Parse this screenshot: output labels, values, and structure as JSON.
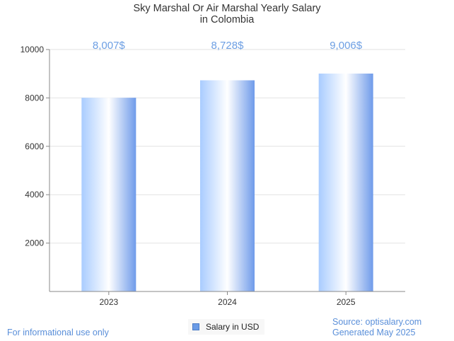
{
  "chart_data": {
    "type": "bar",
    "title_lines": [
      "Sky Marshal Or Air Marshal Yearly Salary",
      "in Colombia"
    ],
    "categories": [
      "2023",
      "2024",
      "2025"
    ],
    "series": [
      {
        "name": "Salary in USD",
        "values": [
          8007,
          8728,
          9006
        ]
      }
    ],
    "data_labels": [
      "8,007$",
      "8,728$",
      "9,006$"
    ],
    "y_ticks": [
      2000,
      4000,
      6000,
      8000,
      10000
    ],
    "ylim": [
      0,
      10000
    ],
    "grid": true,
    "legend_position": "bottom-center",
    "colors": {
      "bar_light": "#ffffff",
      "bar_mid": "#a9ccff",
      "bar_dark": "#6f9bea",
      "label": "#6d9fe3"
    }
  },
  "footer": {
    "left_note": "For informational use only",
    "source": "Source: optisalary.com",
    "generated": "Generated May 2025"
  }
}
